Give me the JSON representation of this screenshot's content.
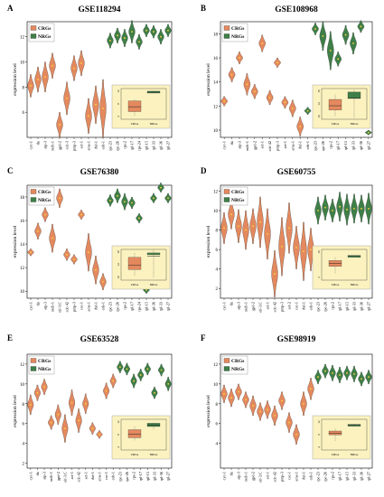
{
  "colors": {
    "crg": "#e4895e",
    "nrg": "#3f7f48",
    "inset_bg": "#fbf2c0",
    "violin_edge": "#333333",
    "median": "#ffd23a"
  },
  "legend": {
    "crg_label": "CRGs",
    "nrg_label": "NRGs"
  },
  "chart_data": [
    {
      "type": "violin",
      "panel_letter": "A",
      "title": "GSE118294",
      "ylabel": "expression level",
      "ylim": [
        4,
        13.2
      ],
      "yticks": [
        "6",
        "8",
        "10",
        "12"
      ],
      "categories": [
        "cyc-1",
        "tlu",
        "atp-3",
        "mdh-1",
        "gpd-2",
        "cdc-3",
        "pmp-3",
        "act-1",
        "ama-1",
        "rbd-1",
        "ceb-1",
        "rpc-23",
        "rpc-26",
        "rps-2",
        "rpl-17",
        "rps-24",
        "rpl-15",
        "rpl-33",
        "rpl-36",
        "rpl-27"
      ],
      "groups": [
        "CRGs",
        "CRGs",
        "CRGs",
        "CRGs",
        "CRGs",
        "CRGs",
        "CRGs",
        "CRGs",
        "CRGs",
        "CRGs",
        "CRGs",
        "NRGs",
        "NRGs",
        "NRGs",
        "NRGs",
        "NRGs",
        "NRGs",
        "NRGs",
        "NRGs",
        "NRGs"
      ],
      "medians": [
        8.1,
        8.6,
        8.8,
        9.7,
        5.0,
        7.1,
        9.5,
        9.9,
        5.7,
        6.6,
        6.3,
        11.7,
        12.1,
        11.9,
        12.4,
        11.6,
        12.5,
        12.4,
        12.0,
        12.5
      ],
      "spreads": [
        0.9,
        1.0,
        1.2,
        1.0,
        1.0,
        1.3,
        1.0,
        1.0,
        1.4,
        1.5,
        2.3,
        0.6,
        0.6,
        0.7,
        0.9,
        0.6,
        0.5,
        0.5,
        0.6,
        0.5
      ],
      "inset": {
        "categories": [
          "CRGs",
          "NRGs"
        ],
        "yticks": [
          "12",
          "8",
          "4"
        ]
      }
    },
    {
      "type": "violin",
      "panel_letter": "B",
      "title": "GSE108968",
      "ylabel": "expression level",
      "ylim": [
        9.4,
        19
      ],
      "yticks": [
        "10",
        "12",
        "14",
        "16",
        "18"
      ],
      "categories": [
        "cyc-1",
        "tlu",
        "atp-3",
        "mdh-1",
        "gpd-2",
        "act-1",
        "cdc-42",
        "pmp-3",
        "act-1",
        "ama-1",
        "rbd-1",
        "ceb-1",
        "rpc-23",
        "rpc-26",
        "rps-2",
        "rpl-17",
        "rpl-15",
        "rpl-33",
        "rpl-36",
        "rpl-27"
      ],
      "groups": [
        "CRGs",
        "CRGs",
        "CRGs",
        "CRGs",
        "CRGs",
        "CRGs",
        "CRGs",
        "CRGs",
        "CRGs",
        "CRGs",
        "CRGs",
        "NRGs",
        "NRGs",
        "NRGs",
        "NRGs",
        "NRGs",
        "NRGs",
        "NRGs",
        "NRGs",
        "NRGs"
      ],
      "medians": [
        12.4,
        14.6,
        16.0,
        13.8,
        13.2,
        17.2,
        12.7,
        15.6,
        12.3,
        11.8,
        10.3,
        11.6,
        18.4,
        17.8,
        16.6,
        15.9,
        17.9,
        17.2,
        18.6,
        9.8
      ],
      "spreads": [
        0.4,
        0.6,
        0.5,
        0.9,
        0.6,
        0.7,
        0.6,
        0.4,
        0.5,
        0.7,
        0.8,
        0.3,
        0.5,
        1.2,
        1.6,
        0.6,
        0.8,
        0.9,
        0.5,
        0.2
      ],
      "inset": {
        "categories": [
          "CRGs",
          "NRGs"
        ],
        "yticks": [
          "18",
          "14",
          "10"
        ]
      }
    },
    {
      "type": "violin",
      "panel_letter": "C",
      "title": "GSE76380",
      "ylabel": "expression level",
      "ylim": [
        9.4,
        19
      ],
      "yticks": [
        "10",
        "12",
        "14",
        "16",
        "18"
      ],
      "categories": [
        "cyc-1",
        "tlu",
        "atp-3",
        "mdh-1",
        "eif-3.C",
        "cdc-42",
        "pmp-3",
        "csc-1",
        "ama-1",
        "rbd-1",
        "ceb-1",
        "rpc-23",
        "rpc-26",
        "rps-2",
        "rpl-17",
        "rps-24",
        "rpl-15",
        "rpl-36",
        "rpl-33",
        "rpl-27"
      ],
      "groups": [
        "CRGs",
        "CRGs",
        "CRGs",
        "CRGs",
        "CRGs",
        "CRGs",
        "CRGs",
        "CRGs",
        "CRGs",
        "CRGs",
        "CRGs",
        "NRGs",
        "NRGs",
        "NRGs",
        "NRGs",
        "NRGs",
        "NRGs",
        "NRGs",
        "NRGs",
        "NRGs"
      ],
      "medians": [
        13.3,
        15.1,
        16.5,
        14.5,
        17.9,
        13.1,
        12.7,
        16.5,
        13.3,
        11.8,
        10.8,
        17.7,
        18.1,
        17.6,
        17.5,
        16.2,
        10.1,
        17.9,
        18.8,
        17.9
      ],
      "spreads": [
        0.3,
        0.7,
        0.6,
        1.2,
        0.8,
        0.5,
        0.4,
        0.4,
        1.6,
        1.2,
        0.7,
        0.5,
        0.6,
        0.7,
        0.5,
        0.4,
        0.3,
        0.4,
        0.4,
        0.4
      ],
      "inset": {
        "categories": [
          "CRGs",
          "NRGs"
        ],
        "yticks": [
          "18",
          "14",
          "10"
        ]
      }
    },
    {
      "type": "violin",
      "panel_letter": "D",
      "title": "GSE60755",
      "ylabel": "expression level",
      "ylim": [
        1,
        12.6
      ],
      "yticks": [
        "2",
        "4",
        "6",
        "8",
        "10",
        "12"
      ],
      "categories": [
        "cyc-1",
        "tlu",
        "atp-3",
        "mdh-1",
        "gpd-2",
        "eif-3.C",
        "act-1",
        "cdc-42",
        "pmp-3",
        "act-2",
        "csc-1",
        "rbd-1",
        "ceb-1",
        "rpc-23",
        "rpc-26",
        "rps-2",
        "rpl-17",
        "rpl-15",
        "rpl-33",
        "rpl-36",
        "rpl-27"
      ],
      "groups": [
        "CRGs",
        "CRGs",
        "CRGs",
        "CRGs",
        "CRGs",
        "CRGs",
        "CRGs",
        "CRGs",
        "CRGs",
        "CRGs",
        "CRGs",
        "CRGs",
        "CRGs",
        "NRGs",
        "NRGs",
        "NRGs",
        "NRGs",
        "NRGs",
        "NRGs",
        "NRGs",
        "NRGs"
      ],
      "medians": [
        8.2,
        9.6,
        8.4,
        8.0,
        8.4,
        8.8,
        7.6,
        3.5,
        6.3,
        8.2,
        6.2,
        5.8,
        6.0,
        10.0,
        10.3,
        10.0,
        10.4,
        10.1,
        10.2,
        10.2,
        10.2
      ],
      "spreads": [
        1.6,
        1.5,
        1.7,
        2.0,
        1.8,
        2.6,
        2.6,
        2.4,
        3.0,
        2.6,
        2.2,
        3.0,
        2.2,
        1.4,
        1.3,
        1.2,
        1.5,
        1.6,
        1.5,
        1.4,
        1.6
      ],
      "inset": {
        "categories": [
          "CRGs",
          "NRGs"
        ],
        "yticks": [
          "10",
          "5"
        ]
      }
    },
    {
      "type": "violin",
      "panel_letter": "E",
      "title": "GSE63528",
      "ylabel": "expression level",
      "ylim": [
        1.5,
        13
      ],
      "yticks": [
        "2",
        "4",
        "6",
        "8",
        "10",
        "12"
      ],
      "categories": [
        "cyc-1",
        "tlu",
        "atp-3",
        "mdh-1",
        "gpd-2",
        "eif-3.C",
        "act-1",
        "cdc-42",
        "act-1",
        "rbd-1",
        "ama-1",
        "csc-1",
        "ceb-1",
        "rpc-23",
        "rpc-26",
        "rps-2",
        "rpl-17",
        "rpl-15",
        "rpl-33",
        "rpl-36",
        "rpl-27"
      ],
      "groups": [
        "CRGs",
        "CRGs",
        "CRGs",
        "CRGs",
        "CRGs",
        "CRGs",
        "CRGs",
        "CRGs",
        "CRGs",
        "CRGs",
        "CRGs",
        "CRGs",
        "CRGs",
        "NRGs",
        "NRGs",
        "NRGs",
        "NRGs",
        "NRGs",
        "NRGs",
        "NRGs",
        "NRGs"
      ],
      "medians": [
        7.9,
        9.1,
        9.7,
        6.1,
        6.9,
        5.5,
        8.1,
        6.3,
        8.0,
        5.5,
        4.9,
        9.3,
        10.3,
        11.7,
        11.5,
        10.3,
        10.9,
        11.5,
        9.1,
        11.4,
        10.0
      ],
      "spreads": [
        1.0,
        0.8,
        0.8,
        0.7,
        1.0,
        1.4,
        1.3,
        1.2,
        1.0,
        0.6,
        0.4,
        0.8,
        0.7,
        0.6,
        0.6,
        0.7,
        0.6,
        0.6,
        0.6,
        0.6,
        0.7
      ],
      "inset": {
        "categories": [
          "CRGs",
          "NRGs"
        ],
        "yticks": [
          "12",
          "8",
          "4"
        ]
      }
    },
    {
      "type": "violin",
      "panel_letter": "F",
      "title": "GSE98919",
      "ylabel": "expression level",
      "ylim": [
        1.5,
        13
      ],
      "yticks": [
        "4",
        "6",
        "8",
        "10",
        "12"
      ],
      "categories": [
        "cyc-1",
        "tlu",
        "atp-3",
        "mdh-1",
        "gpd-2",
        "eif-3.C",
        "act-1",
        "cdc-42",
        "pmp-3",
        "csc-1",
        "ama-1",
        "rbd-1",
        "ceb-1",
        "rpc-23",
        "rpc-26",
        "rps-2",
        "rpl-17",
        "rpl-15",
        "rpl-33",
        "rpl-36",
        "rpl-27"
      ],
      "groups": [
        "CRGs",
        "CRGs",
        "CRGs",
        "CRGs",
        "CRGs",
        "CRGs",
        "CRGs",
        "CRGs",
        "CRGs",
        "CRGs",
        "CRGs",
        "CRGs",
        "CRGs",
        "NRGs",
        "NRGs",
        "NRGs",
        "NRGs",
        "NRGs",
        "NRGs",
        "NRGs",
        "NRGs"
      ],
      "medians": [
        9.0,
        8.6,
        9.2,
        8.4,
        7.8,
        7.2,
        7.4,
        6.8,
        8.3,
        6.1,
        4.9,
        8.0,
        9.5,
        10.7,
        11.3,
        11.1,
        10.9,
        11.1,
        11.0,
        10.5,
        10.7
      ],
      "spreads": [
        0.9,
        0.9,
        0.8,
        0.8,
        1.0,
        0.9,
        0.9,
        1.0,
        0.9,
        1.0,
        1.0,
        1.2,
        1.1,
        0.7,
        0.7,
        0.8,
        0.8,
        0.7,
        0.8,
        0.7,
        0.7
      ],
      "inset": {
        "categories": [
          "CRGs",
          "NRGs"
        ],
        "yticks": [
          "12",
          "8",
          "4"
        ]
      }
    }
  ]
}
